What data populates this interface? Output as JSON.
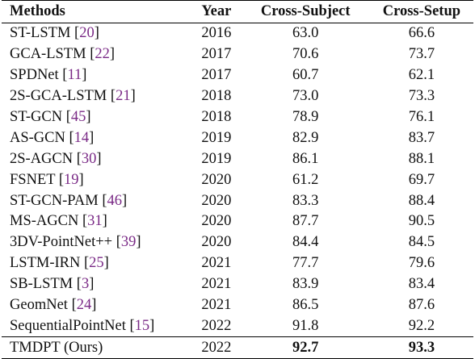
{
  "table": {
    "headers": [
      "Methods",
      "Year",
      "Cross-Subject",
      "Cross-Setup"
    ],
    "rows": [
      {
        "method": "ST-LSTM",
        "ref": "20",
        "year": "2016",
        "cross_subject": "63.0",
        "cross_setup": "66.6"
      },
      {
        "method": "GCA-LSTM",
        "ref": "22",
        "year": "2017",
        "cross_subject": "70.6",
        "cross_setup": "73.7"
      },
      {
        "method": "SPDNet",
        "ref": "11",
        "year": "2017",
        "cross_subject": "60.7",
        "cross_setup": "62.1"
      },
      {
        "method": "2S-GCA-LSTM",
        "ref": "21",
        "year": "2018",
        "cross_subject": "73.0",
        "cross_setup": "73.3"
      },
      {
        "method": "ST-GCN",
        "ref": "45",
        "year": "2018",
        "cross_subject": "78.9",
        "cross_setup": "76.1"
      },
      {
        "method": "AS-GCN",
        "ref": "14",
        "year": "2019",
        "cross_subject": "82.9",
        "cross_setup": "83.7"
      },
      {
        "method": "2S-AGCN",
        "ref": "30",
        "year": "2019",
        "cross_subject": "86.1",
        "cross_setup": "88.1"
      },
      {
        "method": "FSNET",
        "ref": "19",
        "year": "2020",
        "cross_subject": "61.2",
        "cross_setup": "69.7"
      },
      {
        "method": "ST-GCN-PAM",
        "ref": "46",
        "year": "2020",
        "cross_subject": "83.3",
        "cross_setup": "88.4"
      },
      {
        "method": "MS-AGCN",
        "ref": "31",
        "year": "2020",
        "cross_subject": "87.7",
        "cross_setup": "90.5"
      },
      {
        "method": "3DV-PointNet++",
        "ref": "39",
        "year": "2020",
        "cross_subject": "84.4",
        "cross_setup": "84.5"
      },
      {
        "method": "LSTM-IRN",
        "ref": "25",
        "year": "2021",
        "cross_subject": "77.7",
        "cross_setup": "79.6"
      },
      {
        "method": "SB-LSTM",
        "ref": "3",
        "year": "2021",
        "cross_subject": "83.9",
        "cross_setup": "83.4"
      },
      {
        "method": "GeomNet",
        "ref": "24",
        "year": "2021",
        "cross_subject": "86.5",
        "cross_setup": "87.6"
      },
      {
        "method": "SequentialPointNet",
        "ref": "15",
        "year": "2022",
        "cross_subject": "91.8",
        "cross_setup": "92.2"
      }
    ],
    "ours": {
      "method": "TMDPT (Ours)",
      "year": "2022",
      "cross_subject": "92.7",
      "cross_setup": "93.3"
    }
  },
  "colors": {
    "reference_link": "#7a2a86",
    "text": "#111111",
    "rule": "#000000"
  }
}
